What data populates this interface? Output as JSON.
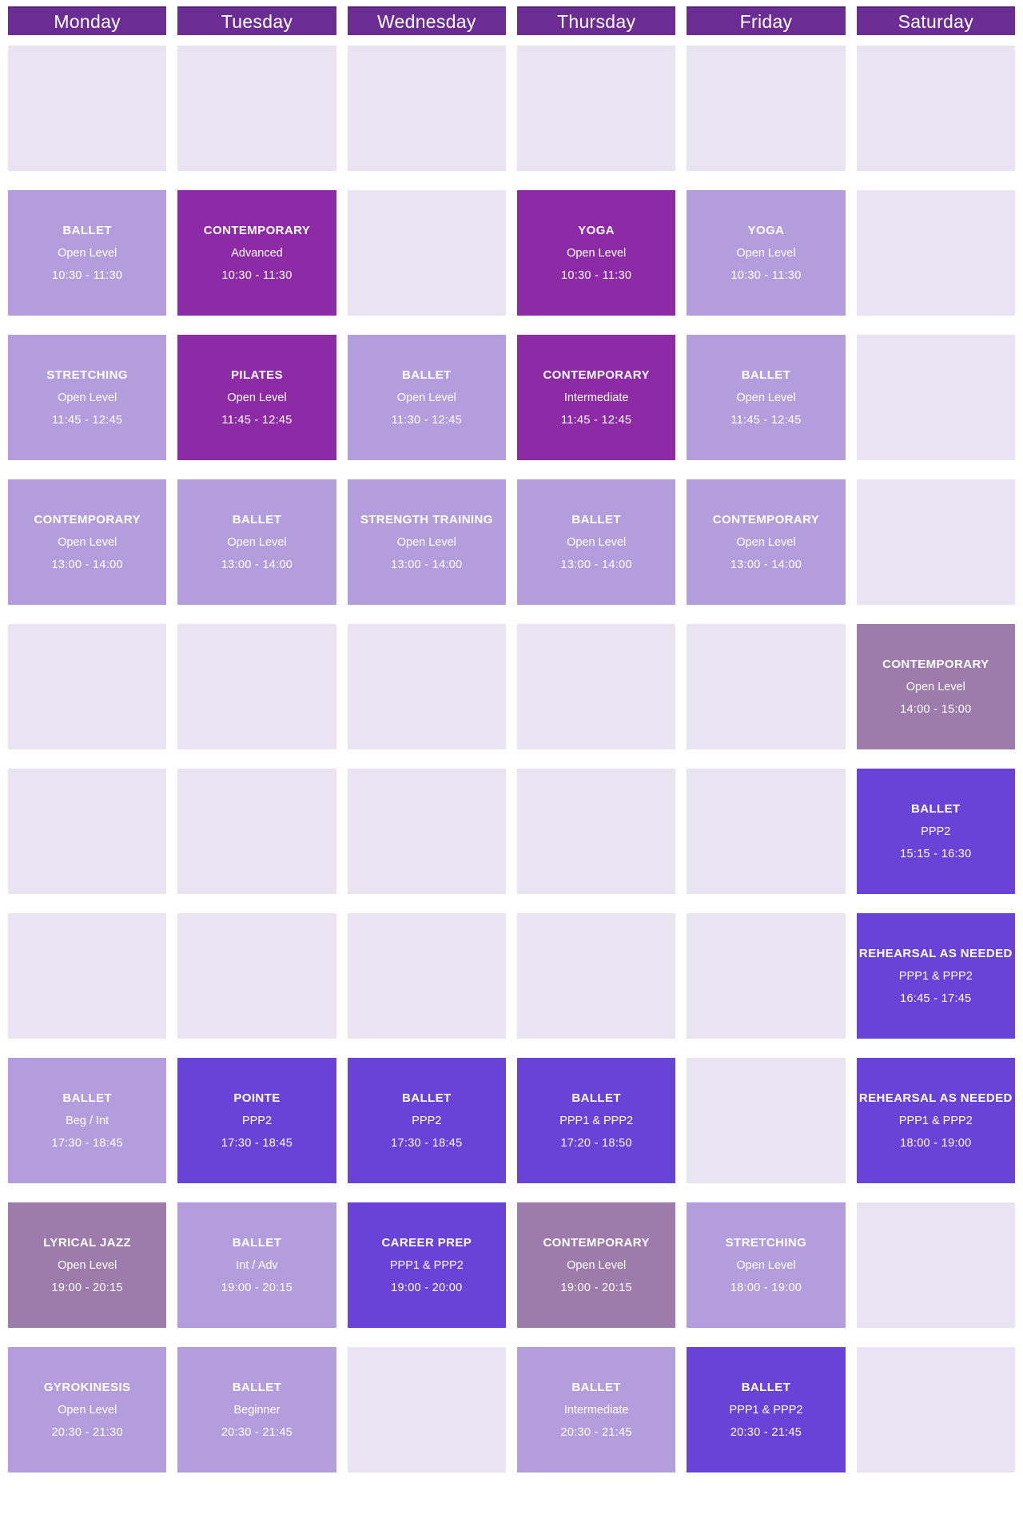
{
  "colors": {
    "header_bar": "#6b2d94",
    "empty_cell": "#e9e3f2",
    "class_light": "#b49ddc",
    "class_dark": "#8d2ba6",
    "class_mauve": "#9d7bab",
    "class_violet": "#6942d8",
    "text": "#ffffff"
  },
  "columns": [
    {
      "day": "Monday",
      "slots": [
        null,
        {
          "name": "BALLET",
          "level": "Open Level",
          "time": "10:30 - 11:30",
          "variant": "light"
        },
        {
          "name": "STRETCHING",
          "level": "Open Level",
          "time": "11:45 - 12:45",
          "variant": "light"
        },
        {
          "name": "CONTEMPORARY",
          "level": "Open Level",
          "time": "13:00 - 14:00",
          "variant": "light"
        },
        null,
        null,
        null,
        {
          "name": "BALLET",
          "level": "Beg / Int",
          "time": "17:30 - 18:45",
          "variant": "light"
        },
        {
          "name": "LYRICAL JAZZ",
          "level": "Open Level",
          "time": "19:00 - 20:15",
          "variant": "mauve"
        },
        {
          "name": "GYROKINESIS",
          "level": "Open Level",
          "time": "20:30 - 21:30",
          "variant": "light"
        }
      ]
    },
    {
      "day": "Tuesday",
      "slots": [
        null,
        {
          "name": "CONTEMPORARY",
          "level": "Advanced",
          "time": "10:30 - 11:30",
          "variant": "dark"
        },
        {
          "name": "PILATES",
          "level": "Open Level",
          "time": "11:45 - 12:45",
          "variant": "dark"
        },
        {
          "name": "BALLET",
          "level": "Open Level",
          "time": "13:00 - 14:00",
          "variant": "light"
        },
        null,
        null,
        null,
        {
          "name": "POINTE",
          "level": "PPP2",
          "time": "17:30 - 18:45",
          "variant": "violet"
        },
        {
          "name": "BALLET",
          "level": "Int / Adv",
          "time": "19:00 - 20:15",
          "variant": "light"
        },
        {
          "name": "BALLET",
          "level": "Beginner",
          "time": "20:30 - 21:45",
          "variant": "light"
        }
      ]
    },
    {
      "day": "Wednesday",
      "slots": [
        null,
        null,
        {
          "name": "BALLET",
          "level": "Open Level",
          "time": "11:30 - 12:45",
          "variant": "light"
        },
        {
          "name": "STRENGTH TRAINING",
          "level": "Open Level",
          "time": "13:00 - 14:00",
          "variant": "light"
        },
        null,
        null,
        null,
        {
          "name": "BALLET",
          "level": "PPP2",
          "time": "17:30 - 18:45",
          "variant": "violet"
        },
        {
          "name": "CAREER PREP",
          "level": "PPP1 & PPP2",
          "time": "19:00 - 20:00",
          "variant": "violet"
        },
        null
      ]
    },
    {
      "day": "Thursday",
      "slots": [
        null,
        {
          "name": "YOGA",
          "level": "Open Level",
          "time": "10:30 - 11:30",
          "variant": "dark"
        },
        {
          "name": "CONTEMPORARY",
          "level": "Intermediate",
          "time": "11:45 - 12:45",
          "variant": "dark"
        },
        {
          "name": "BALLET",
          "level": "Open Level",
          "time": "13:00 - 14:00",
          "variant": "light"
        },
        null,
        null,
        null,
        {
          "name": "BALLET",
          "level": "PPP1 & PPP2",
          "time": "17:20 - 18:50",
          "variant": "violet"
        },
        {
          "name": "CONTEMPORARY",
          "level": "Open Level",
          "time": "19:00 - 20:15",
          "variant": "mauve"
        },
        {
          "name": "BALLET",
          "level": "Intermediate",
          "time": "20:30 - 21:45",
          "variant": "light"
        }
      ]
    },
    {
      "day": "Friday",
      "slots": [
        null,
        {
          "name": "YOGA",
          "level": "Open Level",
          "time": "10:30 - 11:30",
          "variant": "light"
        },
        {
          "name": "BALLET",
          "level": "Open Level",
          "time": "11:45 - 12:45",
          "variant": "light"
        },
        {
          "name": "CONTEMPORARY",
          "level": "Open Level",
          "time": "13:00 - 14:00",
          "variant": "light"
        },
        null,
        null,
        null,
        null,
        {
          "name": "STRETCHING",
          "level": "Open Level",
          "time": "18:00 - 19:00",
          "variant": "light"
        },
        {
          "name": "BALLET",
          "level": "PPP1 & PPP2",
          "time": "20:30 - 21:45",
          "variant": "violet"
        }
      ]
    },
    {
      "day": "Saturday",
      "slots": [
        null,
        null,
        null,
        null,
        {
          "name": "CONTEMPORARY",
          "level": "Open Level",
          "time": "14:00 - 15:00",
          "variant": "mauve"
        },
        {
          "name": "BALLET",
          "level": "PPP2",
          "time": "15:15 - 16:30",
          "variant": "violet"
        },
        {
          "name": "REHEARSAL AS NEEDED",
          "level": "PPP1 & PPP2",
          "time": "16:45 - 17:45",
          "variant": "violet"
        },
        {
          "name": "REHEARSAL AS NEEDED",
          "level": "PPP1 & PPP2",
          "time": "18:00 - 19:00",
          "variant": "violet"
        },
        null,
        null
      ]
    }
  ]
}
